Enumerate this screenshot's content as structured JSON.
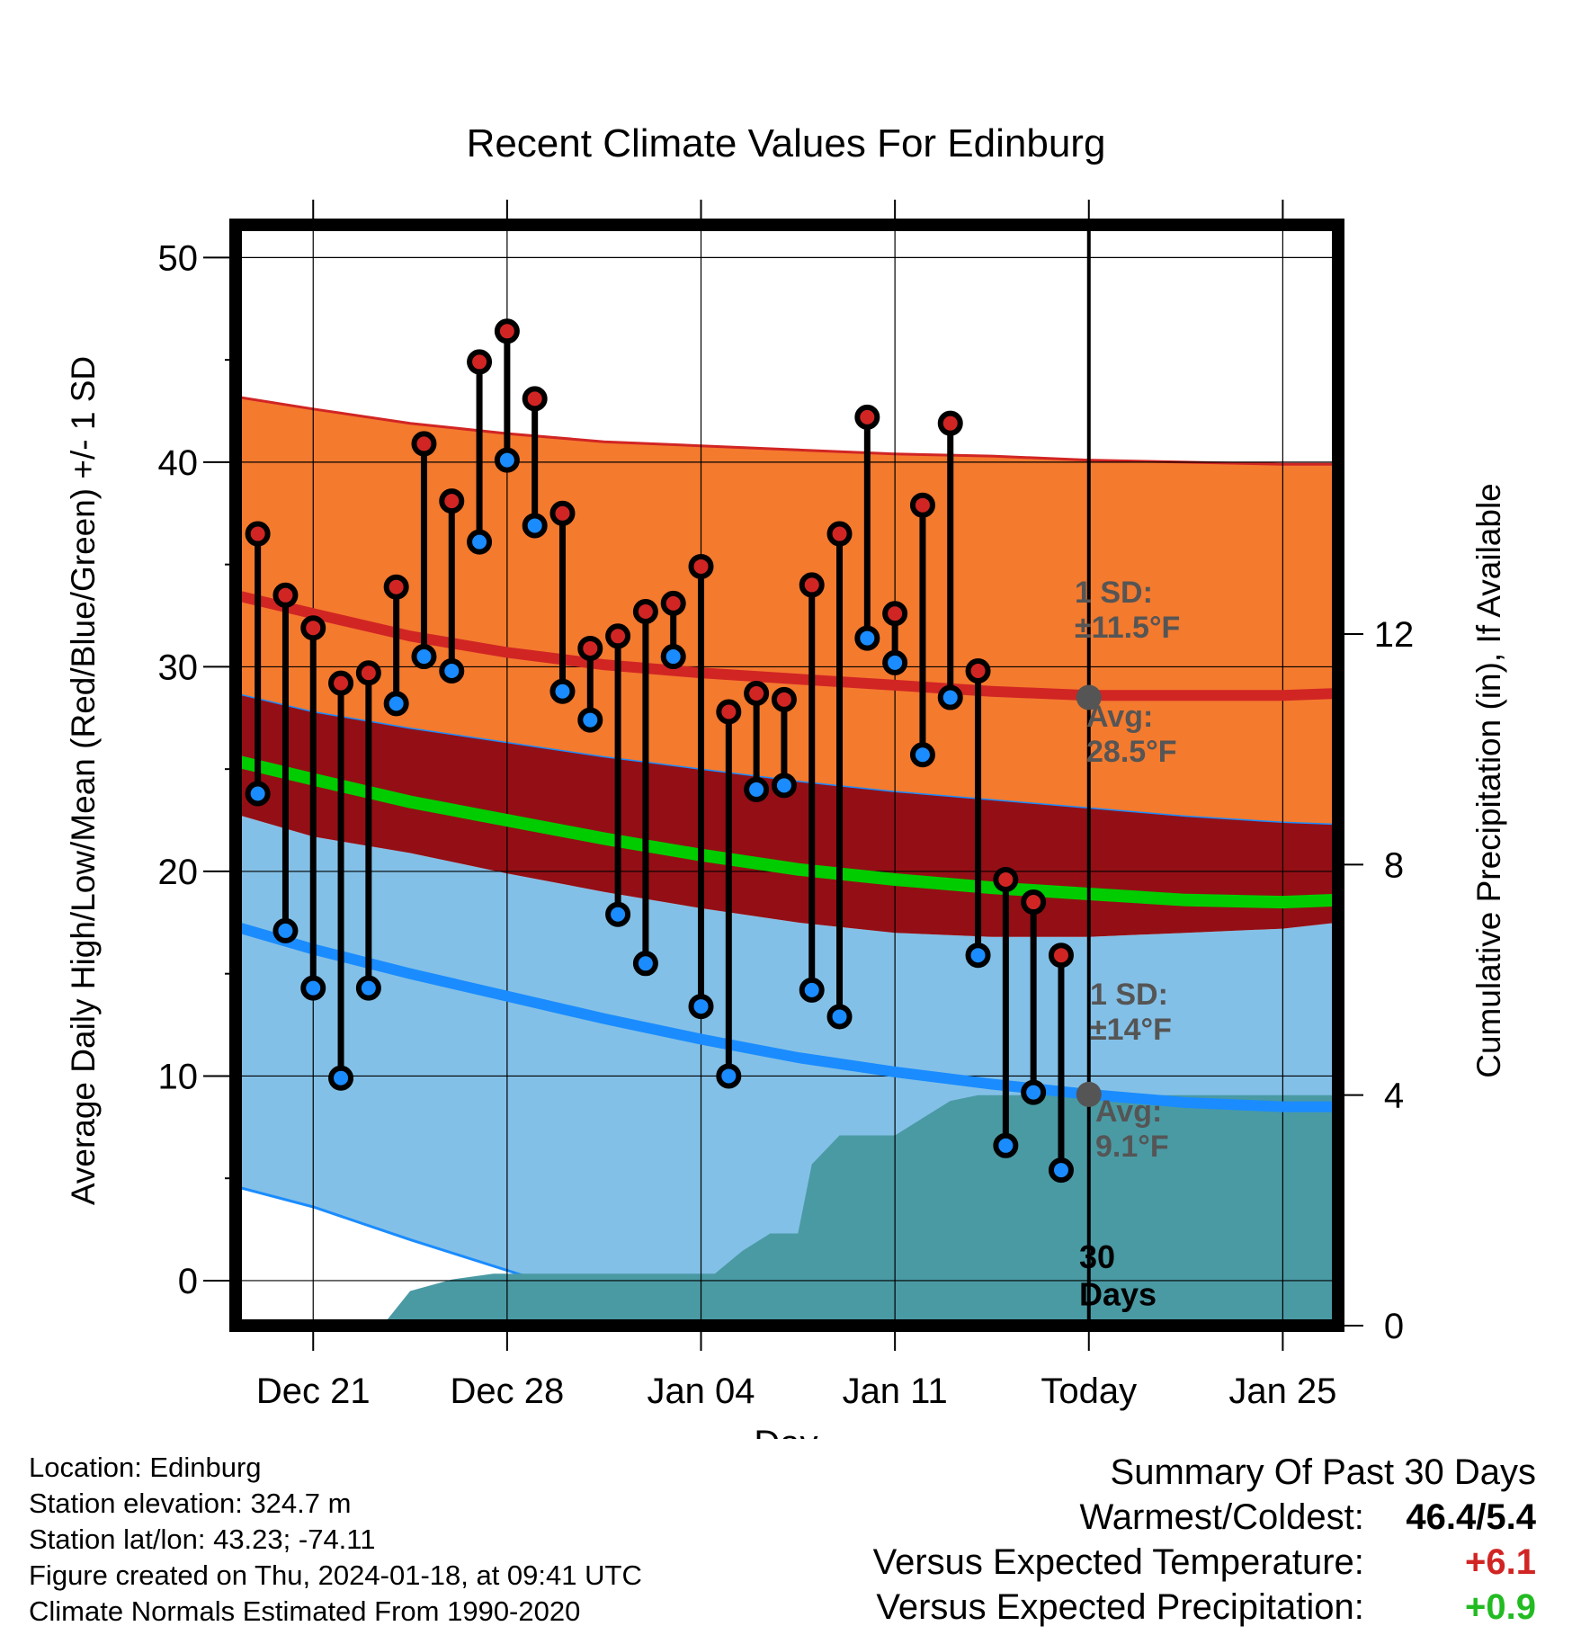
{
  "chart_data": {
    "type": "line",
    "title": "Recent Climate Values For Edinburg",
    "xlabel": "Day",
    "ylabel": "Average Daily High/Low/Mean (Red/Blue/Green) +/- 1 SD",
    "y2label": "Cumulative Precipitation (in), If Available",
    "ylim": [
      -2.2,
      51.6
    ],
    "y2lim": [
      0,
      19.1
    ],
    "xlim": [
      -2.8,
      37.0
    ],
    "yticks": [
      "0",
      "10",
      "20",
      "30",
      "40",
      "50"
    ],
    "y2ticks": [
      "0",
      "4",
      "8",
      "12"
    ],
    "xticks": [
      {
        "day": 0,
        "label": "Dec 21"
      },
      {
        "day": 7,
        "label": "Dec 28"
      },
      {
        "day": 14,
        "label": "Jan 04"
      },
      {
        "day": 21,
        "label": "Jan 11"
      },
      {
        "day": 28,
        "label": "Today"
      },
      {
        "day": 35,
        "label": "Jan 25"
      }
    ],
    "today_day": 28,
    "window_label": [
      "30",
      "Days"
    ],
    "normals": {
      "days": [
        -2.8,
        0,
        3.5,
        7,
        10.5,
        14,
        17.5,
        21,
        24.5,
        28,
        31.5,
        35,
        37.0
      ],
      "high_mean": [
        33.5,
        32.6,
        31.5,
        30.7,
        30.1,
        29.7,
        29.4,
        29.1,
        28.8,
        28.6,
        28.6,
        28.6,
        28.7
      ],
      "high_upper": [
        43.2,
        42.6,
        41.9,
        41.4,
        41.0,
        40.8,
        40.6,
        40.4,
        40.3,
        40.1,
        40.0,
        39.9,
        39.9
      ],
      "high_lower": [
        28.7,
        27.8,
        27.0,
        26.3,
        25.6,
        25.0,
        24.4,
        23.9,
        23.5,
        23.1,
        22.7,
        22.4,
        22.3
      ],
      "mean": [
        25.4,
        24.5,
        23.4,
        22.5,
        21.6,
        20.8,
        20.1,
        19.6,
        19.2,
        18.9,
        18.6,
        18.5,
        18.6
      ],
      "low_mean": [
        17.3,
        16.2,
        15.0,
        13.9,
        12.8,
        11.8,
        10.9,
        10.2,
        9.6,
        9.1,
        8.7,
        8.5,
        8.5
      ],
      "low_upper": [
        22.8,
        21.7,
        20.9,
        19.9,
        19.0,
        18.2,
        17.5,
        17.0,
        16.8,
        16.8,
        17.0,
        17.2,
        17.5
      ],
      "low_lower": [
        4.6,
        3.6,
        2.0,
        0.5,
        -1.0,
        -2.2,
        -2.2,
        -2.2,
        -2.2,
        -2.2,
        -2.2,
        -2.2,
        -2.2
      ]
    },
    "high_sd_label": [
      "1 SD:",
      "±11.5°F"
    ],
    "high_avg_label": [
      "Avg:",
      "28.5°F"
    ],
    "low_sd_label": [
      "1 SD:",
      "±14°F"
    ],
    "low_avg_label": [
      "Avg:",
      "9.1°F"
    ],
    "today_high_avg": 28.5,
    "today_low_avg": 9.1,
    "observations": {
      "days": [
        -2,
        -1,
        0,
        1,
        2,
        3,
        4,
        5,
        6,
        7,
        8,
        9,
        10,
        11,
        12,
        13,
        14,
        15,
        16,
        17,
        18,
        19,
        20,
        21,
        22,
        23,
        24,
        25,
        26,
        27
      ],
      "highs": [
        36.5,
        33.5,
        31.9,
        29.2,
        29.7,
        33.9,
        40.9,
        38.1,
        44.9,
        46.4,
        43.1,
        37.5,
        30.9,
        31.5,
        32.7,
        33.1,
        34.9,
        27.8,
        28.7,
        28.4,
        34.0,
        36.5,
        42.2,
        32.6,
        37.9,
        41.9,
        29.8,
        19.6,
        18.5,
        15.9
      ],
      "lows": [
        23.8,
        17.1,
        14.3,
        9.9,
        14.3,
        28.2,
        30.5,
        29.8,
        36.1,
        40.1,
        36.9,
        28.8,
        27.4,
        17.9,
        15.5,
        30.5,
        13.4,
        10.0,
        24.0,
        24.2,
        14.2,
        12.9,
        31.4,
        30.2,
        25.7,
        28.5,
        15.9,
        6.6,
        9.2,
        5.4
      ]
    },
    "precipitation": {
      "days": [
        2.5,
        3.5,
        5.0,
        6.5,
        8.0,
        10.0,
        12.0,
        14.0,
        14.5,
        15.5,
        16.5,
        17.5,
        18.0,
        19.0,
        20.0,
        21.0,
        22.0,
        23.0,
        24.0,
        25.0,
        26.0,
        26.5,
        37.0
      ],
      "cumulative_in": [
        0.0,
        0.6,
        0.8,
        0.9,
        0.9,
        0.9,
        0.9,
        0.9,
        0.9,
        1.3,
        1.6,
        1.6,
        2.8,
        3.3,
        3.3,
        3.3,
        3.6,
        3.9,
        4.0,
        4.0,
        4.0,
        4.0,
        4.0
      ]
    },
    "colors": {
      "high_band": "#f47a2e",
      "high_line": "#d12524",
      "overlap_band": "#930f15",
      "low_band": "#83c0e7",
      "low_line": "#1a8cff",
      "mean_line": "#00cc00",
      "precip_fill": "#4a9aa4",
      "high_marker": "#d12524",
      "low_marker": "#1a8cff",
      "label_gray": "#555555",
      "warm_value": "#d12524",
      "wet_value": "#22bb22"
    }
  },
  "info": {
    "location": "Location: Edinburg",
    "elevation": "Station elevation: 324.7 m",
    "latlon": "Station lat/lon: 43.23; -74.11",
    "created": "Figure created on Thu, 2024-01-18, at 09:41 UTC",
    "normals": "Climate Normals Estimated From 1990-2020"
  },
  "summary": {
    "heading": "Summary Of Past 30 Days",
    "warmest_coldest_label": "Warmest/Coldest:",
    "warmest_coldest_value": "46.4/5.4",
    "temp_label": "Versus Expected Temperature:",
    "temp_value": "+6.1",
    "precip_label": "Versus Expected Precipitation:",
    "precip_value": "+0.9"
  }
}
